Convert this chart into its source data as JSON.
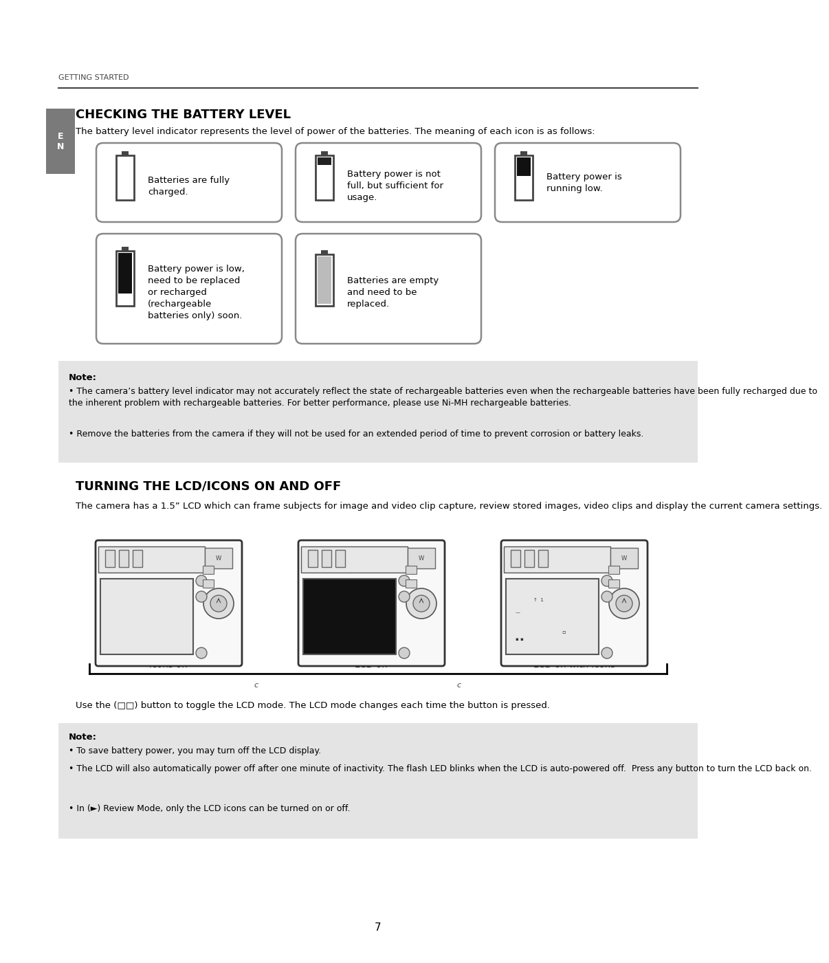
{
  "bg_color": "#ffffff",
  "header_text": "GETTING STARTED",
  "section1_title": "CHECKING THE BATTERY LEVEL",
  "section1_intro": "The battery level indicator represents the level of power of the batteries. The meaning of each icon is as follows:",
  "note1_title": "Note:",
  "note1_bullet1": "The camera’s battery level indicator may not accurately reflect the state of rechargeable batteries even when the rechargeable batteries have been fully recharged due to the inherent problem with rechargeable batteries. For better performance, please use Ni-MH rechargeable batteries.",
  "note1_bullet2": "Remove the batteries from the camera if they will not be used for an extended period of time to prevent corrosion or battery leaks.",
  "section2_title": "TURNING THE LCD/ICONS ON AND OFF",
  "section2_intro": "The camera has a 1.5” LCD which can frame subjects for image and video clip capture, review stored images, video clips and display the current camera settings.",
  "lcd_label1": "Icons off",
  "lcd_label2": "LCD off",
  "lcd_label3": "LCD on with icons",
  "lcd_toggle_text": "Use the (□□) button to toggle the LCD mode. The LCD mode changes each time the button is pressed.",
  "lcd_note_title": "Note:",
  "lcd_note_bullet1": "To save battery power, you may turn off the LCD display.",
  "lcd_note_bullet2": "The LCD will also automatically power off after one minute of inactivity. The flash LED blinks when the LCD is auto-powered off.  Press any button to turn the LCD back on.",
  "lcd_note_bullet3": "In (►) Review Mode, only the LCD icons can be turned on or off.",
  "page_number": "7",
  "tab_color": "#7a7a7a",
  "note_bg_color": "#e4e4e4"
}
